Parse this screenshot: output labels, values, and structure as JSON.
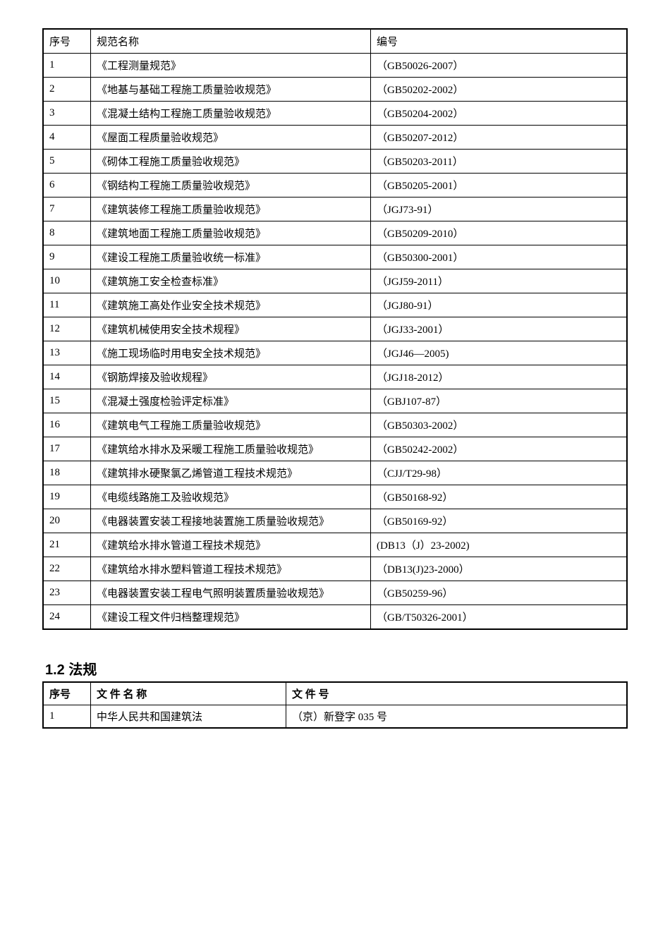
{
  "table1": {
    "headers": {
      "seq": "序号",
      "name": "规范名称",
      "code": "编号"
    },
    "rows": [
      {
        "seq": "1",
        "name": "《工程测量规范》",
        "code": "（GB50026-2007）"
      },
      {
        "seq": "2",
        "name": "《地基与基础工程施工质量验收规范》",
        "code": "（GB50202-2002）"
      },
      {
        "seq": "3",
        "name": "《混凝土结构工程施工质量验收规范》",
        "code": "（GB50204-2002）"
      },
      {
        "seq": "4",
        "name": "《屋面工程质量验收规范》",
        "code": "（GB50207-2012）"
      },
      {
        "seq": "5",
        "name": "《砌体工程施工质量验收规范》",
        "code": "（GB50203-2011）"
      },
      {
        "seq": "6",
        "name": "《钢结构工程施工质量验收规范》",
        "code": "（GB50205-2001）"
      },
      {
        "seq": "7",
        "name": "《建筑装修工程施工质量验收规范》",
        "code": "（JGJ73-91）"
      },
      {
        "seq": "8",
        "name": "《建筑地面工程施工质量验收规范》",
        "code": "（GB50209-2010）"
      },
      {
        "seq": "9",
        "name": "《建设工程施工质量验收统一标准》",
        "code": "（GB50300-2001）"
      },
      {
        "seq": "10",
        "name": "《建筑施工安全检查标准》",
        "code": "（JGJ59-2011）"
      },
      {
        "seq": "11",
        "name": "《建筑施工高处作业安全技术规范》",
        "code": "（JGJ80-91）"
      },
      {
        "seq": "12",
        "name": "《建筑机械使用安全技术规程》",
        "code": "（JGJ33-2001）"
      },
      {
        "seq": "13",
        "name": "《施工现场临时用电安全技术规范》",
        "code": "（JGJ46—2005)"
      },
      {
        "seq": "14",
        "name": "《钢筋焊接及验收规程》",
        "code": "（JGJ18-2012）"
      },
      {
        "seq": "15",
        "name": "《混凝土强度检验评定标准》",
        "code": "（GBJ107-87）"
      },
      {
        "seq": "16",
        "name": "《建筑电气工程施工质量验收规范》",
        "code": "（GB50303-2002）"
      },
      {
        "seq": "17",
        "name": "《建筑给水排水及采暖工程施工质量验收规范》",
        "code": "（GB50242-2002）"
      },
      {
        "seq": "18",
        "name": "《建筑排水硬聚氯乙烯管道工程技术规范》",
        "code": "（CJJ/T29-98）"
      },
      {
        "seq": "19",
        "name": "《电缆线路施工及验收规范》",
        "code": "（GB50168-92）"
      },
      {
        "seq": "20",
        "name": "《电器装置安装工程接地装置施工质量验收规范》",
        "code": "（GB50169-92）"
      },
      {
        "seq": "21",
        "name": "《建筑给水排水管道工程技术规范》",
        "code": "(DB13（J）23-2002)"
      },
      {
        "seq": "22",
        "name": "《建筑给水排水塑料管道工程技术规范》",
        "code": "（DB13(J)23-2000）"
      },
      {
        "seq": "23",
        "name": "《电器装置安装工程电气照明装置质量验收规范》",
        "code": "（GB50259-96）"
      },
      {
        "seq": "24",
        "name": "《建设工程文件归档整理规范》",
        "code": "（GB/T50326-2001）"
      }
    ]
  },
  "section2": {
    "title": "1.2 法规",
    "headers": {
      "seq": "序号",
      "name": "文 件 名 称",
      "code": "文 件 号"
    },
    "rows": [
      {
        "seq": "1",
        "name": "中华人民共和国建筑法",
        "code": "（京）新登字 035 号"
      }
    ]
  }
}
